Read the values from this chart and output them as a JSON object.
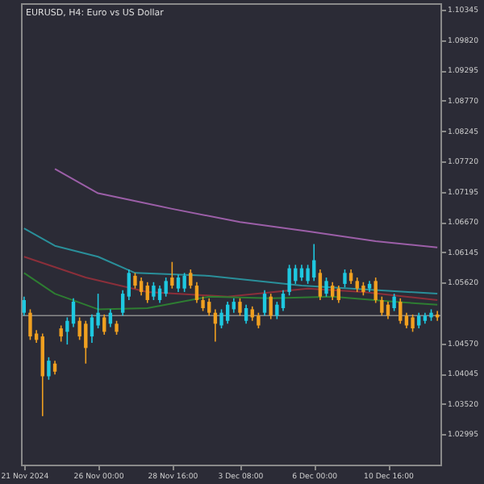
{
  "chart_data": {
    "type": "candlestick",
    "title": "EURUSD, H4:  Euro vs US Dollar",
    "categories": [
      "21 Nov 2024",
      null,
      null,
      null,
      null,
      null,
      null,
      null,
      null,
      null,
      null,
      null,
      "26 Nov 00:00",
      null,
      null,
      null,
      null,
      null,
      null,
      null,
      null,
      null,
      null,
      null,
      "28 Nov 16:00",
      null,
      null,
      null,
      null,
      null,
      null,
      null,
      null,
      null,
      null,
      "3 Dec 08:00",
      null,
      null,
      null,
      null,
      null,
      null,
      null,
      null,
      null,
      null,
      null,
      "6 Dec 00:00",
      null,
      null,
      null,
      null,
      null,
      null,
      null,
      null,
      null,
      null,
      null,
      "10 Dec 16:00",
      null,
      null,
      null,
      null,
      null,
      null,
      null,
      null
    ],
    "ohlc": [
      [
        1.051,
        1.0538,
        1.0505,
        1.0532
      ],
      [
        1.051,
        1.0516,
        1.0463,
        1.0469
      ],
      [
        1.0474,
        1.048,
        1.0458,
        1.0463
      ],
      [
        1.0469,
        1.0474,
        1.0331,
        1.04
      ],
      [
        1.04,
        1.0433,
        1.0394,
        1.0427
      ],
      [
        1.0422,
        1.0427,
        1.0403,
        1.0408
      ],
      [
        1.0483,
        1.0488,
        1.046,
        1.0469
      ],
      [
        1.0477,
        1.0502,
        1.0455,
        1.0496
      ],
      [
        1.0491,
        1.0535,
        1.0485,
        1.0529
      ],
      [
        1.0496,
        1.0502,
        1.0463,
        1.0469
      ],
      [
        1.0491,
        1.0496,
        1.0422,
        1.0449
      ],
      [
        1.0469,
        1.0507,
        1.0458,
        1.0502
      ],
      [
        1.0488,
        1.0543,
        1.0483,
        1.051
      ],
      [
        1.0502,
        1.0507,
        1.0472,
        1.0477
      ],
      [
        1.0491,
        1.0516,
        1.0485,
        1.051
      ],
      [
        1.0491,
        1.0496,
        1.0472,
        1.0477
      ],
      [
        1.051,
        1.0549,
        1.0505,
        1.0543
      ],
      [
        1.0538,
        1.0585,
        1.0532,
        1.0579
      ],
      [
        1.0574,
        1.0579,
        1.0552,
        1.0557
      ],
      [
        1.0565,
        1.0571,
        1.054,
        1.0546
      ],
      [
        1.0557,
        1.0563,
        1.0527,
        1.0532
      ],
      [
        1.0538,
        1.0563,
        1.0532,
        1.0557
      ],
      [
        1.0532,
        1.0557,
        1.0527,
        1.0552
      ],
      [
        1.0543,
        1.0571,
        1.0538,
        1.0565
      ],
      [
        1.0571,
        1.0598,
        1.0552,
        1.0557
      ],
      [
        1.0552,
        1.0576,
        1.0546,
        1.0571
      ],
      [
        1.0552,
        1.0579,
        1.0546,
        1.0574
      ],
      [
        1.0579,
        1.0585,
        1.0552,
        1.0557
      ],
      [
        1.0557,
        1.0563,
        1.0527,
        1.0532
      ],
      [
        1.0532,
        1.0538,
        1.0513,
        1.0518
      ],
      [
        1.0529,
        1.0535,
        1.0505,
        1.051
      ],
      [
        1.051,
        1.0516,
        1.046,
        1.0491
      ],
      [
        1.0488,
        1.0516,
        1.0483,
        1.051
      ],
      [
        1.0496,
        1.0529,
        1.0491,
        1.0524
      ],
      [
        1.0516,
        1.0535,
        1.051,
        1.0529
      ],
      [
        1.0529,
        1.0535,
        1.0505,
        1.051
      ],
      [
        1.0496,
        1.0524,
        1.0491,
        1.0518
      ],
      [
        1.0516,
        1.0521,
        1.0496,
        1.0502
      ],
      [
        1.0505,
        1.051,
        1.0483,
        1.0488
      ],
      [
        1.051,
        1.0549,
        1.0505,
        1.0543
      ],
      [
        1.0538,
        1.0543,
        1.0499,
        1.0505
      ],
      [
        1.0505,
        1.0529,
        1.0499,
        1.0524
      ],
      [
        1.0518,
        1.0549,
        1.0513,
        1.0543
      ],
      [
        1.0546,
        1.0593,
        1.054,
        1.0587
      ],
      [
        1.0565,
        1.0593,
        1.056,
        1.0587
      ],
      [
        1.0571,
        1.0593,
        1.0565,
        1.0587
      ],
      [
        1.0565,
        1.0593,
        1.056,
        1.0587
      ],
      [
        1.0571,
        1.0629,
        1.0565,
        1.0601
      ],
      [
        1.0579,
        1.0585,
        1.0532,
        1.0538
      ],
      [
        1.0543,
        1.0571,
        1.0538,
        1.0565
      ],
      [
        1.0557,
        1.0563,
        1.0532,
        1.0538
      ],
      [
        1.0552,
        1.0557,
        1.0527,
        1.0532
      ],
      [
        1.056,
        1.0585,
        1.0554,
        1.0579
      ],
      [
        1.0579,
        1.0585,
        1.056,
        1.0565
      ],
      [
        1.0565,
        1.0571,
        1.0546,
        1.0552
      ],
      [
        1.0557,
        1.0563,
        1.054,
        1.0546
      ],
      [
        1.0552,
        1.0565,
        1.0546,
        1.056
      ],
      [
        1.0565,
        1.0571,
        1.0527,
        1.0532
      ],
      [
        1.0532,
        1.0538,
        1.0505,
        1.051
      ],
      [
        1.0524,
        1.0529,
        1.0499,
        1.0505
      ],
      [
        1.0518,
        1.0543,
        1.0513,
        1.0538
      ],
      [
        1.0529,
        1.0535,
        1.0491,
        1.0496
      ],
      [
        1.0505,
        1.051,
        1.0483,
        1.0488
      ],
      [
        1.0502,
        1.0507,
        1.0477,
        1.0483
      ],
      [
        1.0488,
        1.051,
        1.0483,
        1.0505
      ],
      [
        1.0496,
        1.051,
        1.0491,
        1.0505
      ],
      [
        1.0502,
        1.0516,
        1.0496,
        1.051
      ],
      [
        1.0507,
        1.0513,
        1.0496,
        1.0502
      ]
    ],
    "colors": [
      "#1ec8e0",
      "#f0a020",
      "#f0a020",
      "#f0a020",
      "#1ec8e0",
      "#f0a020",
      "#f0a020",
      "#1ec8e0",
      "#1ec8e0",
      "#f0a020",
      "#f0a020",
      "#1ec8e0",
      "#1ec8e0",
      "#f0a020",
      "#1ec8e0",
      "#f0a020",
      "#1ec8e0",
      "#1ec8e0",
      "#f0a020",
      "#f0a020",
      "#f0a020",
      "#1ec8e0",
      "#1ec8e0",
      "#1ec8e0",
      "#f0a020",
      "#1ec8e0",
      "#1ec8e0",
      "#f0a020",
      "#f0a020",
      "#f0a020",
      "#f0a020",
      "#f0a020",
      "#1ec8e0",
      "#1ec8e0",
      "#1ec8e0",
      "#f0a020",
      "#1ec8e0",
      "#f0a020",
      "#f0a020",
      "#1ec8e0",
      "#f0a020",
      "#1ec8e0",
      "#1ec8e0",
      "#1ec8e0",
      "#1ec8e0",
      "#1ec8e0",
      "#1ec8e0",
      "#1ec8e0",
      "#f0a020",
      "#1ec8e0",
      "#f0a020",
      "#f0a020",
      "#1ec8e0",
      "#f0a020",
      "#f0a020",
      "#f0a020",
      "#1ec8e0",
      "#f0a020",
      "#f0a020",
      "#f0a020",
      "#1ec8e0",
      "#f0a020",
      "#f0a020",
      "#f0a020",
      "#1ec8e0",
      "#1ec8e0",
      "#1ec8e0",
      "#f0a020"
    ],
    "series": [
      {
        "type": "line",
        "color": "#9c5fa8",
        "values": [
          null,
          null,
          null,
          null,
          null,
          1.0759,
          null,
          null,
          null,
          null,
          null,
          null,
          1.0717,
          null,
          null,
          null,
          null,
          null,
          null,
          null,
          null,
          null,
          null,
          null,
          1.069,
          null,
          null,
          null,
          null,
          null,
          null,
          null,
          null,
          null,
          null,
          1.0667,
          null,
          null,
          null,
          null,
          null,
          null,
          null,
          null,
          null,
          null,
          1.0651,
          null,
          null,
          null,
          null,
          null,
          null,
          null,
          null,
          null,
          null,
          1.0634,
          null,
          null,
          null,
          null,
          null,
          null,
          null,
          null,
          null,
          1.0623
        ]
      },
      {
        "type": "line",
        "color": "#2a8f9a",
        "values": [
          1.0656,
          null,
          null,
          null,
          null,
          1.0626,
          null,
          null,
          null,
          null,
          null,
          null,
          1.0607,
          null,
          null,
          null,
          null,
          null,
          1.0579,
          null,
          null,
          null,
          null,
          null,
          null,
          null,
          null,
          null,
          null,
          null,
          1.0574,
          null,
          null,
          null,
          null,
          null,
          null,
          null,
          null,
          null,
          null,
          null,
          null,
          null,
          null,
          1.0557,
          null,
          null,
          null,
          null,
          null,
          null,
          null,
          null,
          null,
          null,
          null,
          null,
          null,
          null,
          null,
          null,
          null,
          null,
          null,
          null,
          null,
          1.0543
        ]
      },
      {
        "type": "line",
        "color": "#8b2f3a",
        "values": [
          1.0607,
          null,
          null,
          null,
          null,
          null,
          null,
          null,
          null,
          null,
          1.0571,
          null,
          null,
          null,
          null,
          null,
          null,
          null,
          null,
          null,
          1.0546,
          null,
          null,
          null,
          null,
          null,
          null,
          null,
          null,
          null,
          null,
          null,
          null,
          1.0538,
          null,
          null,
          null,
          null,
          null,
          null,
          null,
          null,
          null,
          null,
          null,
          null,
          1.0552,
          null,
          null,
          null,
          null,
          null,
          null,
          null,
          null,
          1.0546,
          null,
          null,
          null,
          null,
          null,
          null,
          null,
          null,
          null,
          null,
          null,
          1.0532
        ]
      },
      {
        "type": "line",
        "color": "#2e7d32",
        "values": [
          1.0579,
          null,
          null,
          null,
          null,
          1.0543,
          null,
          null,
          null,
          null,
          null,
          null,
          1.0516,
          null,
          null,
          null,
          null,
          null,
          null,
          null,
          1.0518,
          null,
          null,
          null,
          null,
          null,
          null,
          null,
          null,
          null,
          1.0538,
          null,
          null,
          null,
          null,
          null,
          null,
          null,
          null,
          null,
          1.0535,
          null,
          null,
          null,
          null,
          null,
          null,
          null,
          null,
          null,
          1.0538,
          null,
          null,
          null,
          null,
          null,
          null,
          null,
          null,
          null,
          1.0529,
          null,
          null,
          null,
          null,
          null,
          null,
          1.0524
        ]
      }
    ],
    "ref_lines": [
      {
        "axis": "y",
        "value": 1.0505,
        "color": "#8a8a8a"
      }
    ],
    "ylim": [
      1.0247,
      1.1046
    ],
    "yticks": [
      1.10345,
      {
        "value": 1.0982,
        "label": "1.09820"
      },
      1.09295,
      {
        "value": 1.0877,
        "label": "1.08770"
      },
      1.08245,
      {
        "value": 1.0772,
        "label": "1.07720"
      },
      1.07195,
      {
        "value": 1.0667,
        "label": "1.06670"
      },
      1.06145,
      {
        "value": 1.0562,
        "label": "1.05620"
      },
      {
        "value": 1.0457,
        "label": "1.04570"
      },
      1.04045,
      {
        "value": 1.0352,
        "label": "1.03520"
      },
      1.02995
    ]
  }
}
